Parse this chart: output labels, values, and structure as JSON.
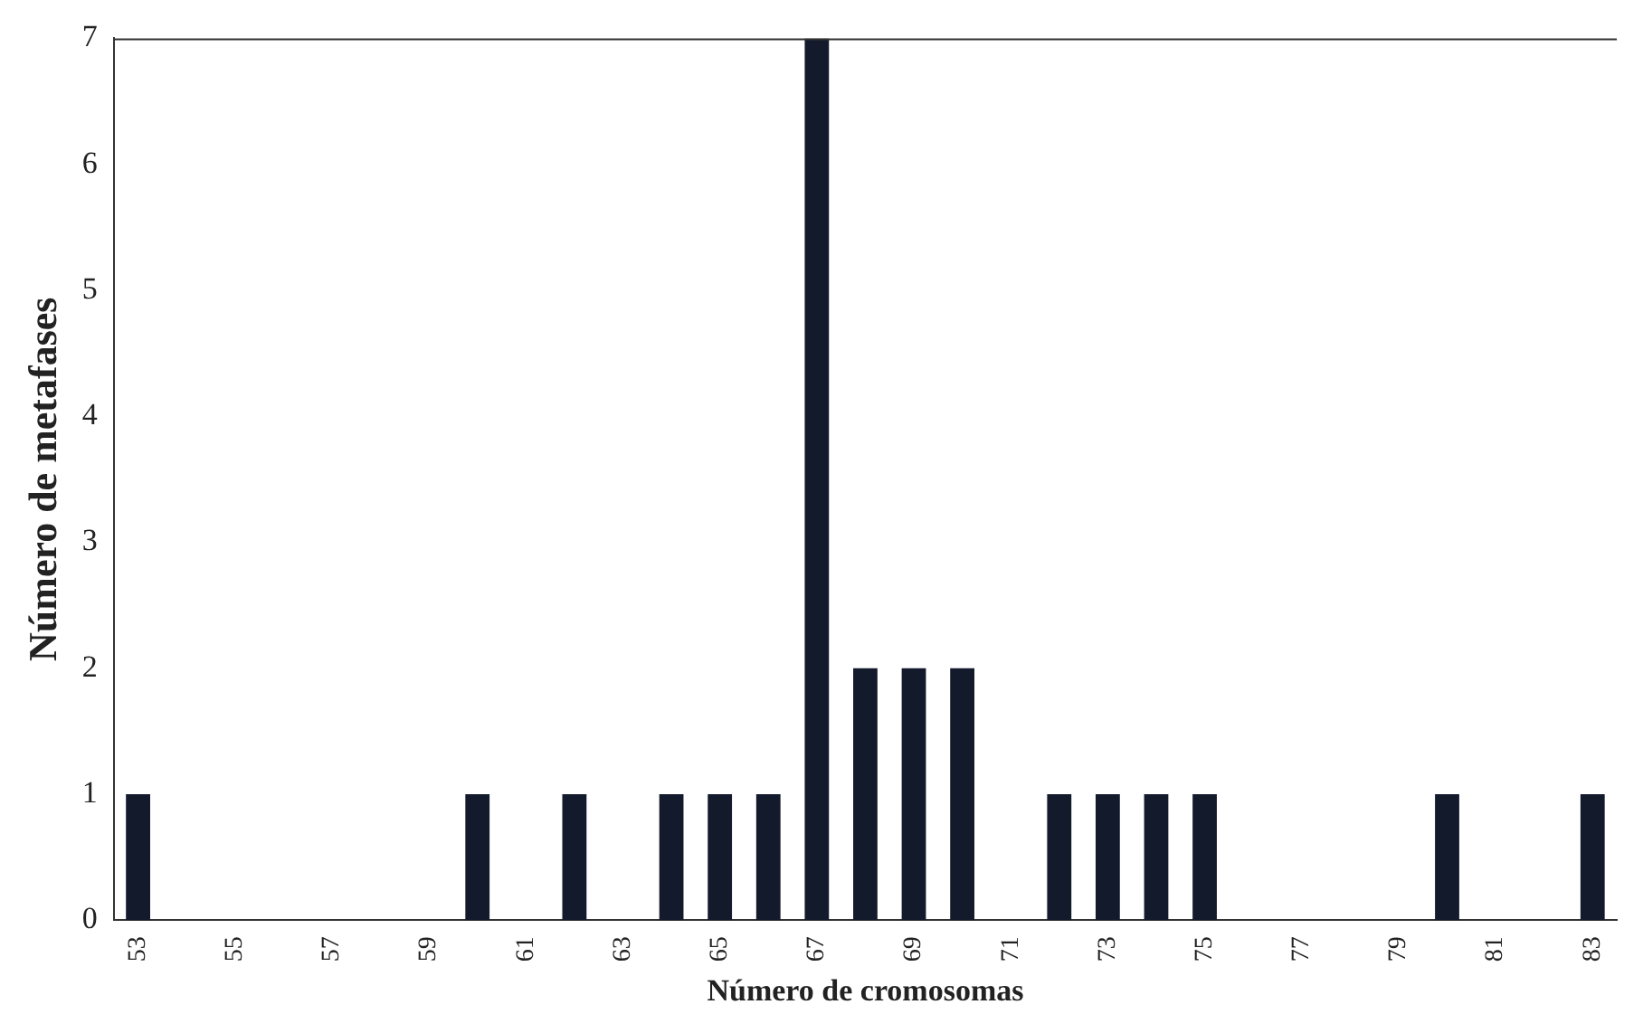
{
  "chart_data": {
    "type": "bar",
    "xlabel": "Número de cromosomas",
    "ylabel": "Número de metafases",
    "categories": [
      "53",
      null,
      "55",
      null,
      "57",
      null,
      "59",
      null,
      "61",
      null,
      "63",
      null,
      "65",
      null,
      "67",
      null,
      "69",
      null,
      "71",
      null,
      "73",
      null,
      "75",
      null,
      "77",
      null,
      "79",
      null,
      "81",
      null,
      "83"
    ],
    "values": [
      1,
      0,
      0,
      0,
      0,
      0,
      0,
      1,
      0,
      1,
      0,
      1,
      1,
      1,
      7,
      2,
      2,
      2,
      0,
      1,
      1,
      1,
      1,
      0,
      0,
      0,
      0,
      1,
      0,
      0,
      1
    ],
    "color": "#131a2c",
    "ylim": [
      0,
      7
    ],
    "yticks": [
      0,
      1,
      2,
      3,
      4,
      5,
      6,
      7
    ],
    "grid": false,
    "legend": false
  }
}
